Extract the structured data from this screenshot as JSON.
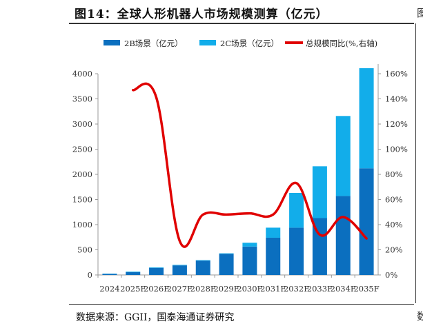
{
  "title": "图14：全球人形机器人市场规模测算（亿元）",
  "source": "数据来源：GGII，国泰海通证券研究",
  "colors": {
    "b2b": "#0b6fbf",
    "b2c": "#12adea",
    "growth": "#e00000",
    "axis": "#999999"
  },
  "edge_glyphs": {
    "top": "图",
    "bottom": "数"
  },
  "chart_data": {
    "type": "bar",
    "title": "全球人形机器人市场规模测算（亿元）",
    "stacked": true,
    "categories": [
      "2024",
      "2025F",
      "2026F",
      "2027F",
      "2028F",
      "2029F",
      "2030F",
      "2031F",
      "2032F",
      "2033F",
      "2034F",
      "2035F"
    ],
    "series": [
      {
        "name": "2B场景（亿元）",
        "type": "bar",
        "axis": "left",
        "values": [
          20,
          55,
          140,
          190,
          285,
          420,
          565,
          740,
          940,
          1130,
          1570,
          2120
        ]
      },
      {
        "name": "2C场景（亿元）",
        "type": "bar",
        "axis": "left",
        "values": [
          5,
          10,
          10,
          10,
          10,
          10,
          75,
          200,
          690,
          1030,
          1590,
          1990
        ]
      },
      {
        "name": "总规模同比(%,右轴)",
        "type": "line",
        "axis": "right",
        "values": [
          null,
          147,
          141,
          27,
          48,
          48,
          49,
          48,
          73,
          32,
          46,
          29
        ]
      }
    ],
    "ylim": [
      0,
      4000
    ],
    "yticks": [
      0,
      500,
      1000,
      1500,
      2000,
      2500,
      3000,
      3500,
      4000
    ],
    "y2lim": [
      0,
      160
    ],
    "y2ticks": [
      "0%",
      "20%",
      "40%",
      "60%",
      "80%",
      "100%",
      "120%",
      "140%",
      "160%"
    ],
    "legend": "top",
    "grid": false,
    "xlabel": "",
    "ylabel": ""
  }
}
